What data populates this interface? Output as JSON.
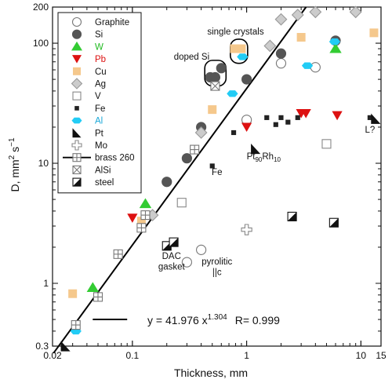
{
  "chart_data": {
    "type": "scatter",
    "xscale": "log",
    "yscale": "log",
    "xlim": [
      0.02,
      15
    ],
    "ylim": [
      0.3,
      200
    ],
    "xlabel": "Thickness, mm",
    "ylabel_parts": {
      "main": "D, mm",
      "sup1": "2",
      "mid": " s",
      "sup2": "−1"
    },
    "xticks": [
      {
        "v": 0.02,
        "label": "0.02"
      },
      {
        "v": 0.1,
        "label": "0.1"
      },
      {
        "v": 1,
        "label": "1"
      },
      {
        "v": 10,
        "label": "10"
      },
      {
        "v": 15,
        "label": "15"
      }
    ],
    "yticks": [
      {
        "v": 0.3,
        "label": "0.3"
      },
      {
        "v": 1,
        "label": "1"
      },
      {
        "v": 10,
        "label": "10"
      },
      {
        "v": 100,
        "label": "100"
      },
      {
        "v": 200,
        "label": "200"
      }
    ],
    "grid": false,
    "legend_position": "top-left",
    "fit": {
      "a": 41.976,
      "b": 1.304,
      "equation_parts": {
        "main": "y = 41.976 x",
        "sup": "1.304",
        "r": "R= 0.999"
      }
    },
    "series": [
      {
        "name": "Graphite",
        "marker": "circle-open",
        "color": "#777777",
        "points": [
          [
            0.3,
            1.5
          ],
          [
            0.4,
            1.9
          ],
          [
            1.0,
            23
          ],
          [
            2.0,
            68
          ],
          [
            4.0,
            63
          ]
        ]
      },
      {
        "name": "Si",
        "marker": "circle-filled",
        "color": "#555555",
        "points": [
          [
            0.2,
            7
          ],
          [
            0.3,
            11
          ],
          [
            0.4,
            20
          ],
          [
            0.48,
            52
          ],
          [
            0.53,
            52
          ],
          [
            0.6,
            62
          ],
          [
            1.0,
            50
          ],
          [
            2.0,
            82
          ],
          [
            6.0,
            105
          ]
        ]
      },
      {
        "name": "W",
        "marker": "triangle-up",
        "color": "#33cc33",
        "points": [
          [
            0.045,
            0.92
          ],
          [
            0.13,
            4.6
          ],
          [
            6.0,
            90
          ]
        ]
      },
      {
        "name": "Pb",
        "marker": "triangle-down",
        "color": "#dd1111",
        "points": [
          [
            0.1,
            3.5
          ],
          [
            1.0,
            20
          ],
          [
            3.0,
            26
          ],
          [
            3.3,
            26
          ],
          [
            6.2,
            25
          ]
        ]
      },
      {
        "name": "Cu",
        "marker": "square-filled",
        "color": "#f5c88c",
        "points": [
          [
            0.03,
            0.82
          ],
          [
            0.12,
            3.3
          ],
          [
            0.5,
            28
          ],
          [
            0.78,
            90
          ],
          [
            0.9,
            90
          ],
          [
            3.0,
            112
          ],
          [
            13,
            122
          ]
        ]
      },
      {
        "name": "Ag",
        "marker": "diamond",
        "color": "#999999",
        "points": [
          [
            0.15,
            3.7
          ],
          [
            0.4,
            18
          ],
          [
            1.6,
            95
          ],
          [
            2.0,
            158
          ],
          [
            2.8,
            172
          ],
          [
            4.0,
            182
          ],
          [
            9.0,
            182
          ]
        ]
      },
      {
        "name": "V",
        "marker": "square-open",
        "color": "#888888",
        "points": [
          [
            0.27,
            4.7
          ],
          [
            5.0,
            14.5
          ]
        ]
      },
      {
        "name": "Fe",
        "marker": "square-small",
        "color": "#222222",
        "points": [
          [
            0.5,
            9.5
          ],
          [
            0.77,
            18
          ],
          [
            1.5,
            24
          ],
          [
            1.8,
            21
          ],
          [
            2.0,
            24
          ],
          [
            2.3,
            22
          ],
          [
            2.8,
            24
          ],
          [
            12,
            24
          ]
        ]
      },
      {
        "name": "Al",
        "marker": "hexagon",
        "color": "#22ccf5",
        "points": [
          [
            0.032,
            0.4
          ],
          [
            0.75,
            38
          ],
          [
            0.92,
            77
          ],
          [
            3.4,
            65
          ],
          [
            5.9,
            103
          ]
        ]
      },
      {
        "name": "Pt",
        "marker": "tri-corner",
        "color": "#111111",
        "points": [
          [
            0.026,
            0.3
          ],
          [
            1.2,
            13.2
          ],
          [
            13.5,
            23.5
          ]
        ]
      },
      {
        "name": "Mo",
        "marker": "plus-open",
        "color": "#888888",
        "points": [
          [
            1.0,
            2.8
          ]
        ]
      },
      {
        "name": "brass 260",
        "marker": "square-cross",
        "color": "#777777",
        "points": [
          [
            0.032,
            0.45
          ],
          [
            0.05,
            0.77
          ],
          [
            0.075,
            1.75
          ],
          [
            0.12,
            2.9
          ],
          [
            0.13,
            3.7
          ],
          [
            0.35,
            13
          ]
        ]
      },
      {
        "name": "AlSi",
        "marker": "square-x",
        "color": "#777777",
        "points": [
          [
            0.53,
            44
          ]
        ]
      },
      {
        "name": "steel",
        "marker": "square-half",
        "color": "#111111",
        "points": [
          [
            0.2,
            2.05
          ],
          [
            0.23,
            2.2
          ],
          [
            2.5,
            3.6
          ],
          [
            5.8,
            3.2
          ]
        ]
      }
    ],
    "annotations": [
      {
        "text": "single crystals",
        "x": 0.8,
        "y": 118
      },
      {
        "text": "doped Si",
        "x": 0.33,
        "y": 73
      },
      {
        "text": "Fe",
        "x": 0.55,
        "y": 8
      },
      {
        "text": "DAC",
        "x": 0.22,
        "y": 1.6
      },
      {
        "text": "gasket",
        "x": 0.22,
        "y": 1.3
      },
      {
        "text": "pyrolitic",
        "x": 0.55,
        "y": 1.43
      },
      {
        "text": "||c",
        "x": 0.55,
        "y": 1.17
      },
      {
        "text": "L?",
        "x": 12,
        "y": 18
      },
      {
        "pt_label": {
          "main": "Pt",
          "sub1": "90",
          "mid": "Rh",
          "sub2": "10"
        },
        "x": 1.0,
        "y": 10.8
      }
    ]
  }
}
